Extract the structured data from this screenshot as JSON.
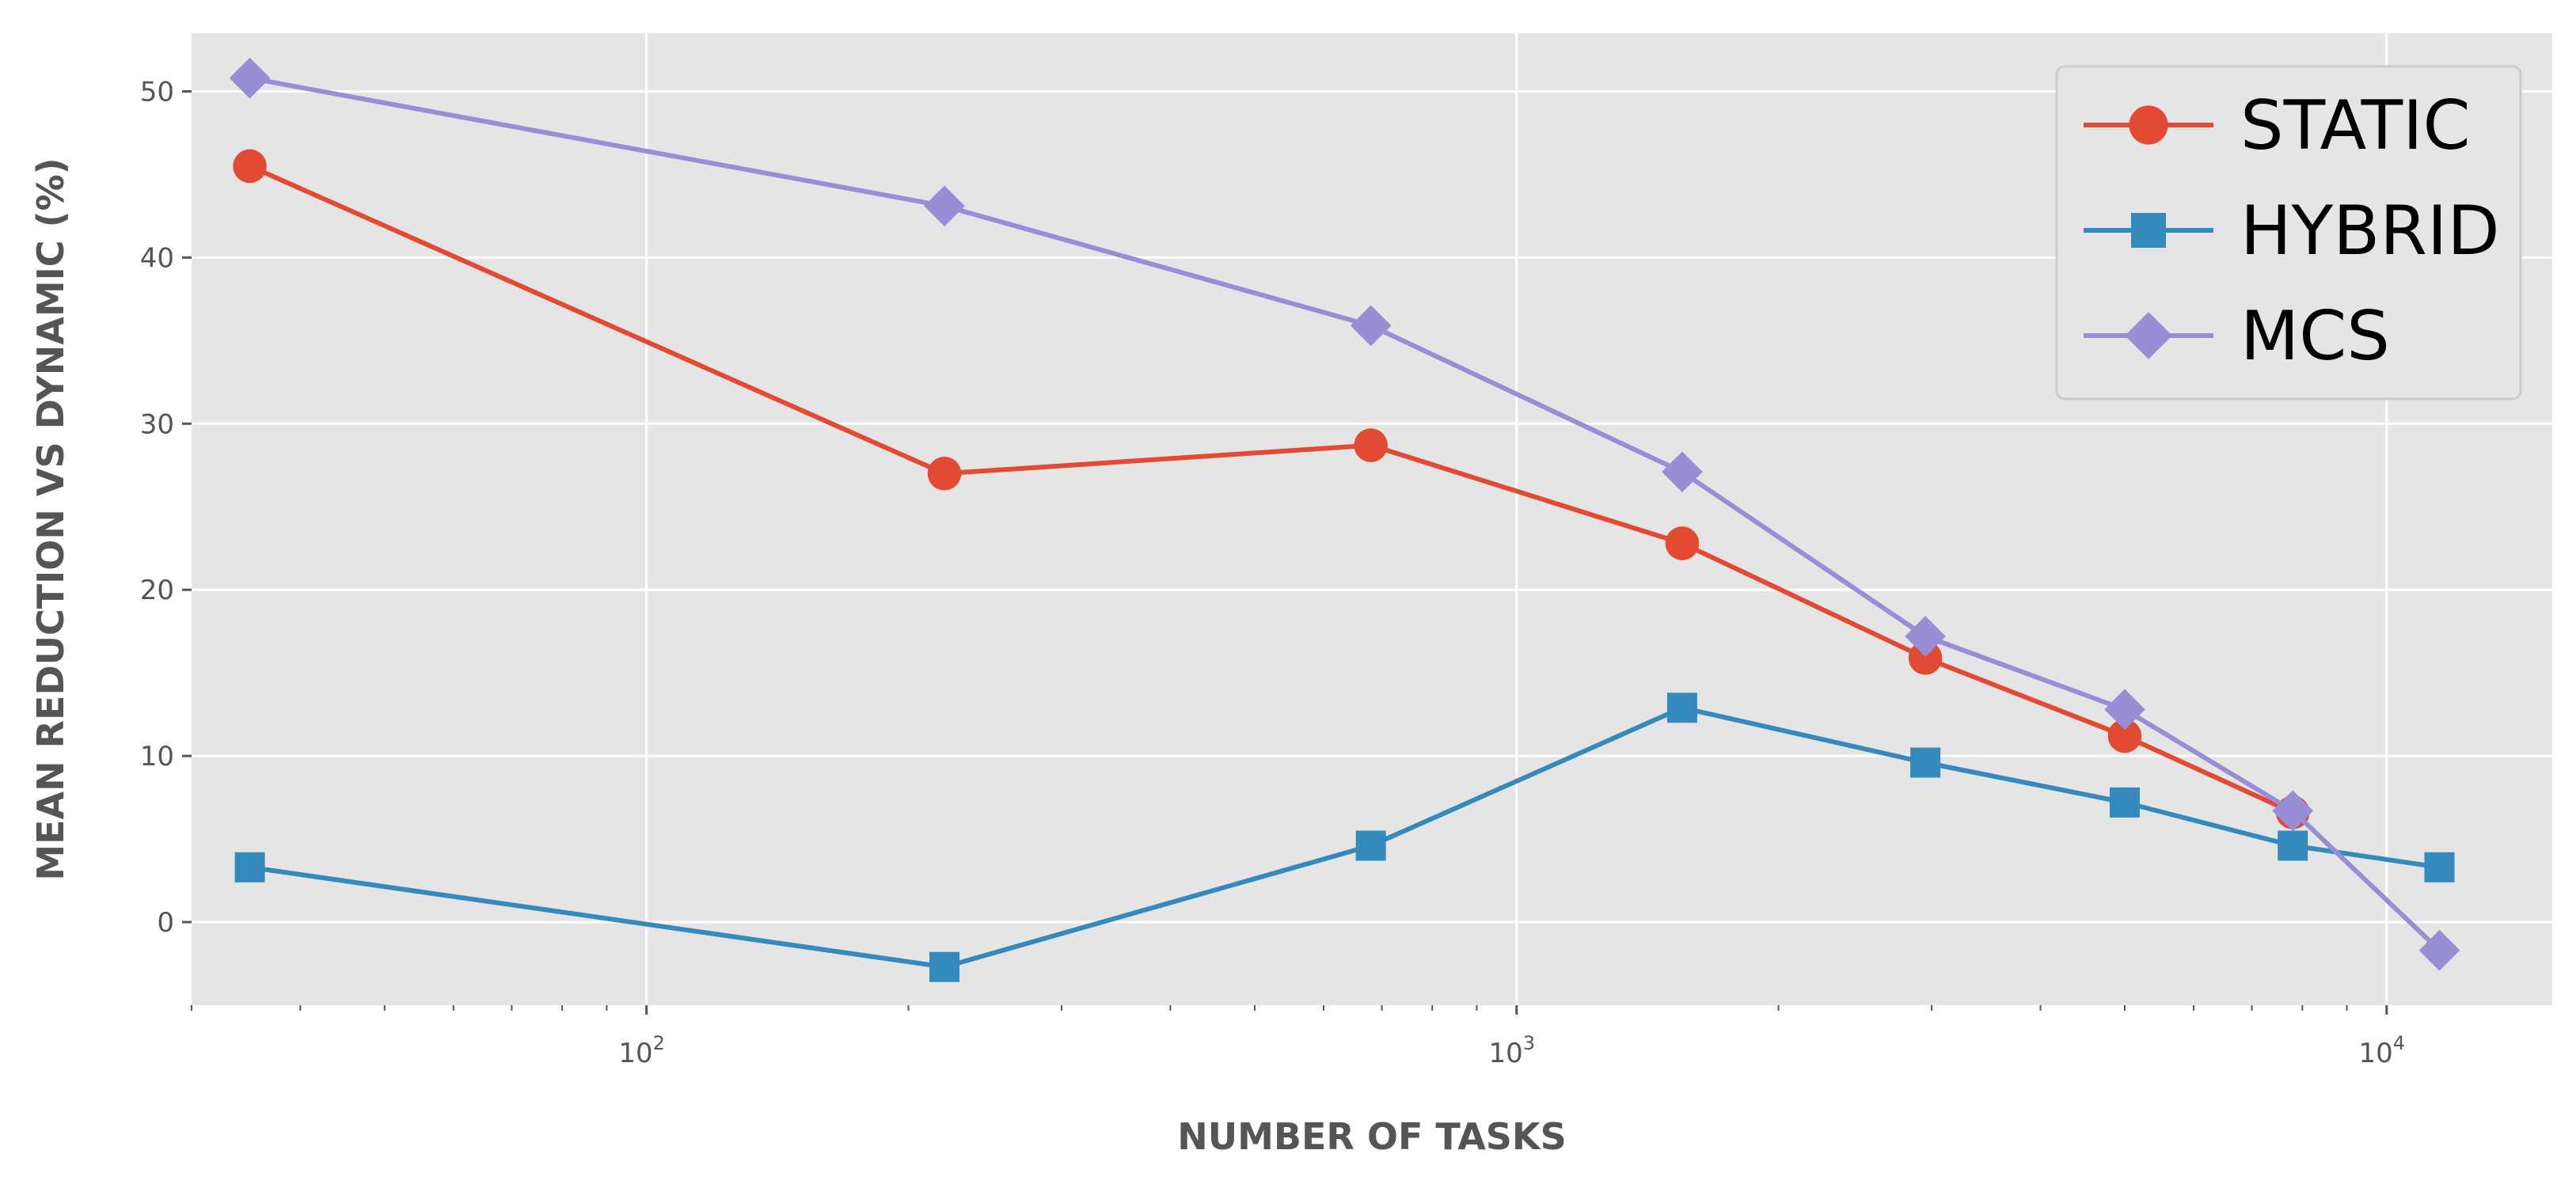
{
  "chart_data": {
    "type": "line",
    "title": "",
    "xlabel": "NUMBER OF TASKS",
    "ylabel": "MEAN REDUCTION VS DYNAMIC (%)",
    "xscale": "log",
    "xlim": [
      30,
      15500
    ],
    "ylim": [
      -5,
      53.5
    ],
    "grid": true,
    "legend_position": "top-right",
    "y_ticks": [
      0,
      10,
      20,
      30,
      40,
      50
    ],
    "x_ticks": [
      {
        "value": 100,
        "base": "10",
        "exp": "2"
      },
      {
        "value": 1000,
        "base": "10",
        "exp": "3"
      },
      {
        "value": 10000,
        "base": "10",
        "exp": "4"
      }
    ],
    "series": [
      {
        "name": "STATIC",
        "color": "#e24a33",
        "marker": "circle",
        "x": [
          35,
          220,
          680,
          1550,
          2950,
          5000,
          7800
        ],
        "values": [
          45.5,
          27.0,
          28.7,
          22.8,
          15.9,
          11.2,
          6.6
        ]
      },
      {
        "name": "HYBRID",
        "color": "#348abd",
        "marker": "square",
        "x": [
          35,
          220,
          680,
          1550,
          2950,
          5000,
          7800,
          11500
        ],
        "values": [
          3.3,
          -2.7,
          4.6,
          12.9,
          9.6,
          7.2,
          4.6,
          3.3
        ]
      },
      {
        "name": "MCS",
        "color": "#988ed5",
        "marker": "diamond",
        "x": [
          35,
          220,
          680,
          1550,
          2950,
          5000,
          7800,
          11500
        ],
        "values": [
          50.8,
          43.1,
          35.9,
          27.1,
          17.2,
          12.8,
          6.7,
          -1.7
        ]
      }
    ]
  }
}
